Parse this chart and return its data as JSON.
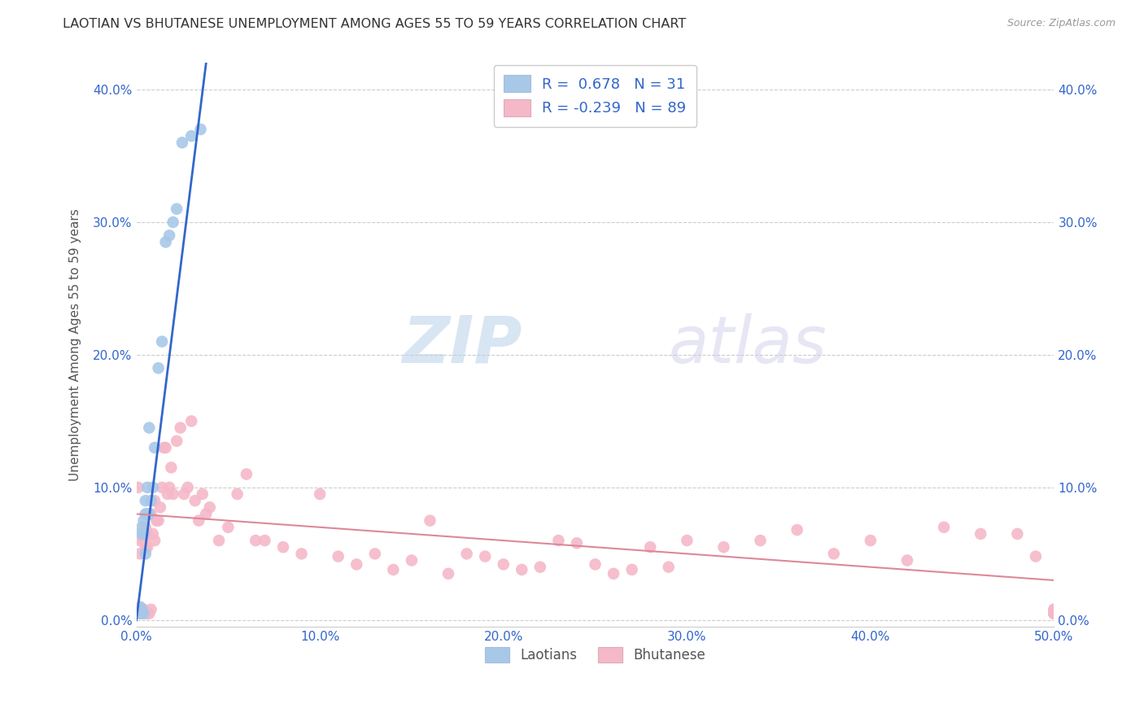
{
  "title": "LAOTIAN VS BHUTANESE UNEMPLOYMENT AMONG AGES 55 TO 59 YEARS CORRELATION CHART",
  "source": "Source: ZipAtlas.com",
  "ylabel": "Unemployment Among Ages 55 to 59 years",
  "xlim": [
    0.0,
    0.5
  ],
  "ylim": [
    -0.005,
    0.42
  ],
  "xticks": [
    0.0,
    0.1,
    0.2,
    0.3,
    0.4,
    0.5
  ],
  "yticks": [
    0.0,
    0.1,
    0.2,
    0.3,
    0.4
  ],
  "xticklabels": [
    "0.0%",
    "10.0%",
    "20.0%",
    "30.0%",
    "40.0%",
    "50.0%"
  ],
  "yticklabels": [
    "0.0%",
    "10.0%",
    "20.0%",
    "30.0%",
    "40.0%"
  ],
  "right_yticklabels": [
    "0.0%",
    "10.0%",
    "20.0%",
    "30.0%",
    "40.0%"
  ],
  "laotian_color": "#a8c8e8",
  "bhutanese_color": "#f5b8c8",
  "laotian_line_color": "#3366cc",
  "bhutanese_line_color": "#dd8899",
  "legend_text_color": "#3366cc",
  "background_color": "#ffffff",
  "legend_R_laotian": "0.678",
  "legend_N_laotian": "31",
  "legend_R_bhutanese": "-0.239",
  "legend_N_bhutanese": "89",
  "laotian_x": [
    0.001,
    0.001,
    0.002,
    0.002,
    0.002,
    0.003,
    0.003,
    0.003,
    0.003,
    0.004,
    0.004,
    0.004,
    0.005,
    0.005,
    0.005,
    0.006,
    0.006,
    0.007,
    0.007,
    0.008,
    0.009,
    0.01,
    0.012,
    0.014,
    0.016,
    0.018,
    0.02,
    0.022,
    0.025,
    0.03,
    0.035
  ],
  "laotian_y": [
    0.005,
    0.008,
    0.005,
    0.008,
    0.01,
    0.005,
    0.008,
    0.065,
    0.07,
    0.005,
    0.065,
    0.075,
    0.05,
    0.08,
    0.09,
    0.08,
    0.1,
    0.08,
    0.145,
    0.09,
    0.1,
    0.13,
    0.19,
    0.21,
    0.285,
    0.29,
    0.3,
    0.31,
    0.36,
    0.365,
    0.37
  ],
  "bhutanese_x": [
    0.001,
    0.002,
    0.002,
    0.003,
    0.003,
    0.003,
    0.004,
    0.004,
    0.004,
    0.005,
    0.005,
    0.005,
    0.006,
    0.006,
    0.006,
    0.007,
    0.007,
    0.008,
    0.008,
    0.009,
    0.01,
    0.01,
    0.011,
    0.012,
    0.013,
    0.014,
    0.015,
    0.016,
    0.017,
    0.018,
    0.019,
    0.02,
    0.022,
    0.024,
    0.026,
    0.028,
    0.03,
    0.032,
    0.034,
    0.036,
    0.038,
    0.04,
    0.045,
    0.05,
    0.055,
    0.06,
    0.065,
    0.07,
    0.08,
    0.09,
    0.1,
    0.11,
    0.12,
    0.13,
    0.14,
    0.15,
    0.16,
    0.17,
    0.18,
    0.19,
    0.2,
    0.21,
    0.22,
    0.23,
    0.24,
    0.25,
    0.26,
    0.27,
    0.28,
    0.29,
    0.3,
    0.32,
    0.34,
    0.36,
    0.38,
    0.4,
    0.42,
    0.44,
    0.46,
    0.48,
    0.49,
    0.5,
    0.5,
    0.5,
    0.5,
    0.5,
    0.5,
    0.5,
    0.5
  ],
  "bhutanese_y": [
    0.1,
    0.05,
    0.06,
    0.005,
    0.008,
    0.065,
    0.005,
    0.008,
    0.06,
    0.005,
    0.055,
    0.07,
    0.005,
    0.055,
    0.065,
    0.005,
    0.08,
    0.008,
    0.08,
    0.065,
    0.06,
    0.09,
    0.075,
    0.075,
    0.085,
    0.1,
    0.13,
    0.13,
    0.095,
    0.1,
    0.115,
    0.095,
    0.135,
    0.145,
    0.095,
    0.1,
    0.15,
    0.09,
    0.075,
    0.095,
    0.08,
    0.085,
    0.06,
    0.07,
    0.095,
    0.11,
    0.06,
    0.06,
    0.055,
    0.05,
    0.095,
    0.048,
    0.042,
    0.05,
    0.038,
    0.045,
    0.075,
    0.035,
    0.05,
    0.048,
    0.042,
    0.038,
    0.04,
    0.06,
    0.058,
    0.042,
    0.035,
    0.038,
    0.055,
    0.04,
    0.06,
    0.055,
    0.06,
    0.068,
    0.05,
    0.06,
    0.045,
    0.07,
    0.065,
    0.065,
    0.048,
    0.005,
    0.008,
    0.005,
    0.008,
    0.005,
    0.005,
    0.005,
    0.005
  ],
  "lao_trendline_x": [
    0.0,
    0.038
  ],
  "lao_trendline_y": [
    0.0,
    0.42
  ],
  "bhu_trendline_x": [
    0.0,
    0.5
  ],
  "bhu_trendline_y": [
    0.08,
    0.03
  ]
}
